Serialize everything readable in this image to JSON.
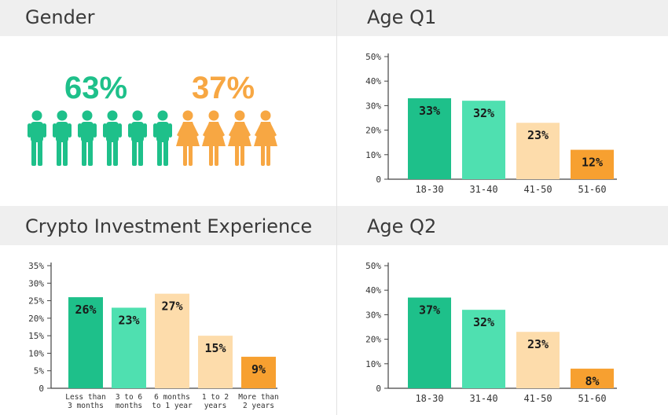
{
  "colors": {
    "male": "#1ec08a",
    "female": "#f7a743",
    "bar_dark_green": "#1ec08a",
    "bar_light_green": "#4fe0b0",
    "bar_peach": "#fddcab",
    "bar_orange": "#f7a030"
  },
  "gender": {
    "title": "Gender",
    "male_pct": "63%",
    "female_pct": "37%",
    "male_icon_count": 6,
    "female_icon_count": 4
  },
  "chart_data": [
    {
      "id": "age-q1",
      "type": "bar",
      "title": "Age Q1",
      "categories": [
        "18-30",
        "31-40",
        "41-50",
        "51-60"
      ],
      "values": [
        33,
        32,
        23,
        12
      ],
      "data_labels": [
        "33%",
        "32%",
        "23%",
        "12%"
      ],
      "ylim": [
        0,
        50
      ],
      "yticks": [
        "0",
        "10%",
        "20%",
        "30%",
        "40%",
        "50%"
      ],
      "bar_colors": [
        "#1ec08a",
        "#4fe0b0",
        "#fddcab",
        "#f7a030"
      ]
    },
    {
      "id": "crypto-exp",
      "type": "bar",
      "title": "Crypto Investment Experience",
      "categories": [
        "Less than 3 months",
        "3 to 6 months",
        "6 months to 1 year",
        "1 to 2 years",
        "More than 2 years"
      ],
      "category_lines": [
        [
          "Less than",
          "3 months"
        ],
        [
          "3 to 6",
          "months"
        ],
        [
          "6 months",
          "to 1 year"
        ],
        [
          "1 to 2",
          "years"
        ],
        [
          "More than",
          "2 years"
        ]
      ],
      "values": [
        26,
        23,
        27,
        15,
        9
      ],
      "data_labels": [
        "26%",
        "23%",
        "27%",
        "15%",
        "9%"
      ],
      "ylim": [
        0,
        35
      ],
      "yticks": [
        "0",
        "5%",
        "10%",
        "15%",
        "20%",
        "25%",
        "30%",
        "35%"
      ],
      "bar_colors": [
        "#1ec08a",
        "#4fe0b0",
        "#fddcab",
        "#fddcab",
        "#f7a030"
      ]
    },
    {
      "id": "age-q2",
      "type": "bar",
      "title": "Age Q2",
      "categories": [
        "18-30",
        "31-40",
        "41-50",
        "51-60"
      ],
      "values": [
        37,
        32,
        23,
        8
      ],
      "data_labels": [
        "37%",
        "32%",
        "23%",
        "8%"
      ],
      "ylim": [
        0,
        50
      ],
      "yticks": [
        "0",
        "10%",
        "20%",
        "30%",
        "40%",
        "50%"
      ],
      "bar_colors": [
        "#1ec08a",
        "#4fe0b0",
        "#fddcab",
        "#f7a030"
      ]
    }
  ]
}
